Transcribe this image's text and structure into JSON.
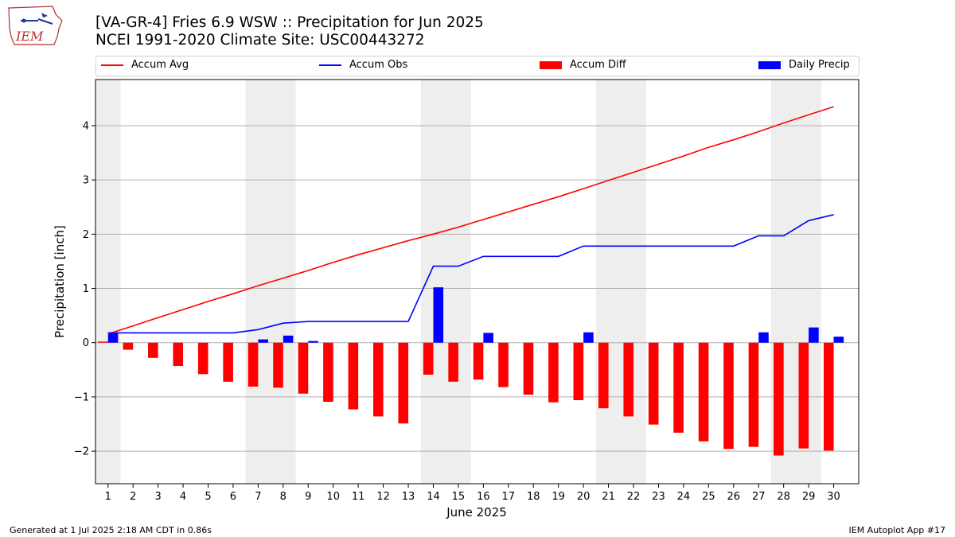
{
  "header": {
    "title_line1": "[VA-GR-4] Fries 6.9 WSW :: Precipitation for Jun 2025",
    "title_line2": "NCEI 1991-2020 Climate Site: USC00443272",
    "logo_text": "IEM"
  },
  "footer": {
    "left": "Generated at 1 Jul 2025 2:18 AM CDT in 0.86s",
    "right": "IEM Autoplot App #17"
  },
  "colors": {
    "accum_avg": "#ff0000",
    "accum_obs": "#0000ff",
    "accum_diff": "#ff0000",
    "daily_precip": "#0000ff",
    "weekend_shade": "#eeeeee",
    "grid": "#b0b0b0"
  },
  "chart_data": {
    "type": "bar",
    "xlabel": "June 2025",
    "ylabel": "Precipitation [inch]",
    "xlim": [
      0.5,
      31.0
    ],
    "ylim": [
      -2.6,
      4.85
    ],
    "yticks": [
      -2,
      -1,
      0,
      1,
      2,
      3,
      4
    ],
    "ytick_labels": [
      "−2",
      "−1",
      "0",
      "1",
      "2",
      "3",
      "4"
    ],
    "grid": true,
    "legend": "top",
    "weekend_shading": [
      [
        0.5,
        1.5
      ],
      [
        6.5,
        8.5
      ],
      [
        13.5,
        15.5
      ],
      [
        20.5,
        22.5
      ],
      [
        27.5,
        29.5
      ]
    ],
    "categories": [
      "1",
      "2",
      "3",
      "4",
      "5",
      "6",
      "7",
      "8",
      "9",
      "10",
      "11",
      "12",
      "13",
      "14",
      "15",
      "16",
      "17",
      "18",
      "19",
      "20",
      "21",
      "22",
      "23",
      "24",
      "25",
      "26",
      "27",
      "28",
      "29",
      "30"
    ],
    "series": [
      {
        "name": "Accum Avg",
        "kind": "line",
        "values": [
          0.16,
          0.31,
          0.46,
          0.61,
          0.76,
          0.9,
          1.05,
          1.19,
          1.33,
          1.48,
          1.62,
          1.75,
          1.88,
          2.0,
          2.13,
          2.27,
          2.41,
          2.55,
          2.69,
          2.84,
          2.99,
          3.14,
          3.29,
          3.44,
          3.6,
          3.74,
          3.89,
          4.05,
          4.2,
          4.35
        ]
      },
      {
        "name": "Accum Obs",
        "kind": "line",
        "values": [
          0.18,
          0.18,
          0.18,
          0.18,
          0.18,
          0.18,
          0.24,
          0.36,
          0.39,
          0.39,
          0.39,
          0.39,
          0.39,
          1.41,
          1.41,
          1.59,
          1.59,
          1.59,
          1.59,
          1.78,
          1.78,
          1.78,
          1.78,
          1.78,
          1.78,
          1.78,
          1.97,
          1.97,
          2.25,
          2.36
        ]
      },
      {
        "name": "Accum Diff",
        "kind": "bar",
        "values": [
          0.02,
          -0.13,
          -0.28,
          -0.43,
          -0.58,
          -0.72,
          -0.81,
          -0.83,
          -0.94,
          -1.09,
          -1.23,
          -1.36,
          -1.49,
          -0.59,
          -0.72,
          -0.68,
          -0.82,
          -0.96,
          -1.1,
          -1.06,
          -1.21,
          -1.36,
          -1.51,
          -1.66,
          -1.82,
          -1.96,
          -1.92,
          -2.08,
          -1.95,
          -1.99
        ]
      },
      {
        "name": "Daily Precip",
        "kind": "bar",
        "values": [
          0.18,
          0.0,
          0.0,
          0.0,
          0.0,
          0.0,
          0.06,
          0.13,
          0.03,
          0.0,
          0.0,
          0.0,
          0.0,
          1.02,
          0.0,
          0.18,
          0.0,
          0.0,
          0.0,
          0.19,
          0.0,
          0.0,
          0.0,
          0.0,
          0.0,
          0.0,
          0.19,
          0.0,
          0.28,
          0.11
        ]
      }
    ]
  }
}
